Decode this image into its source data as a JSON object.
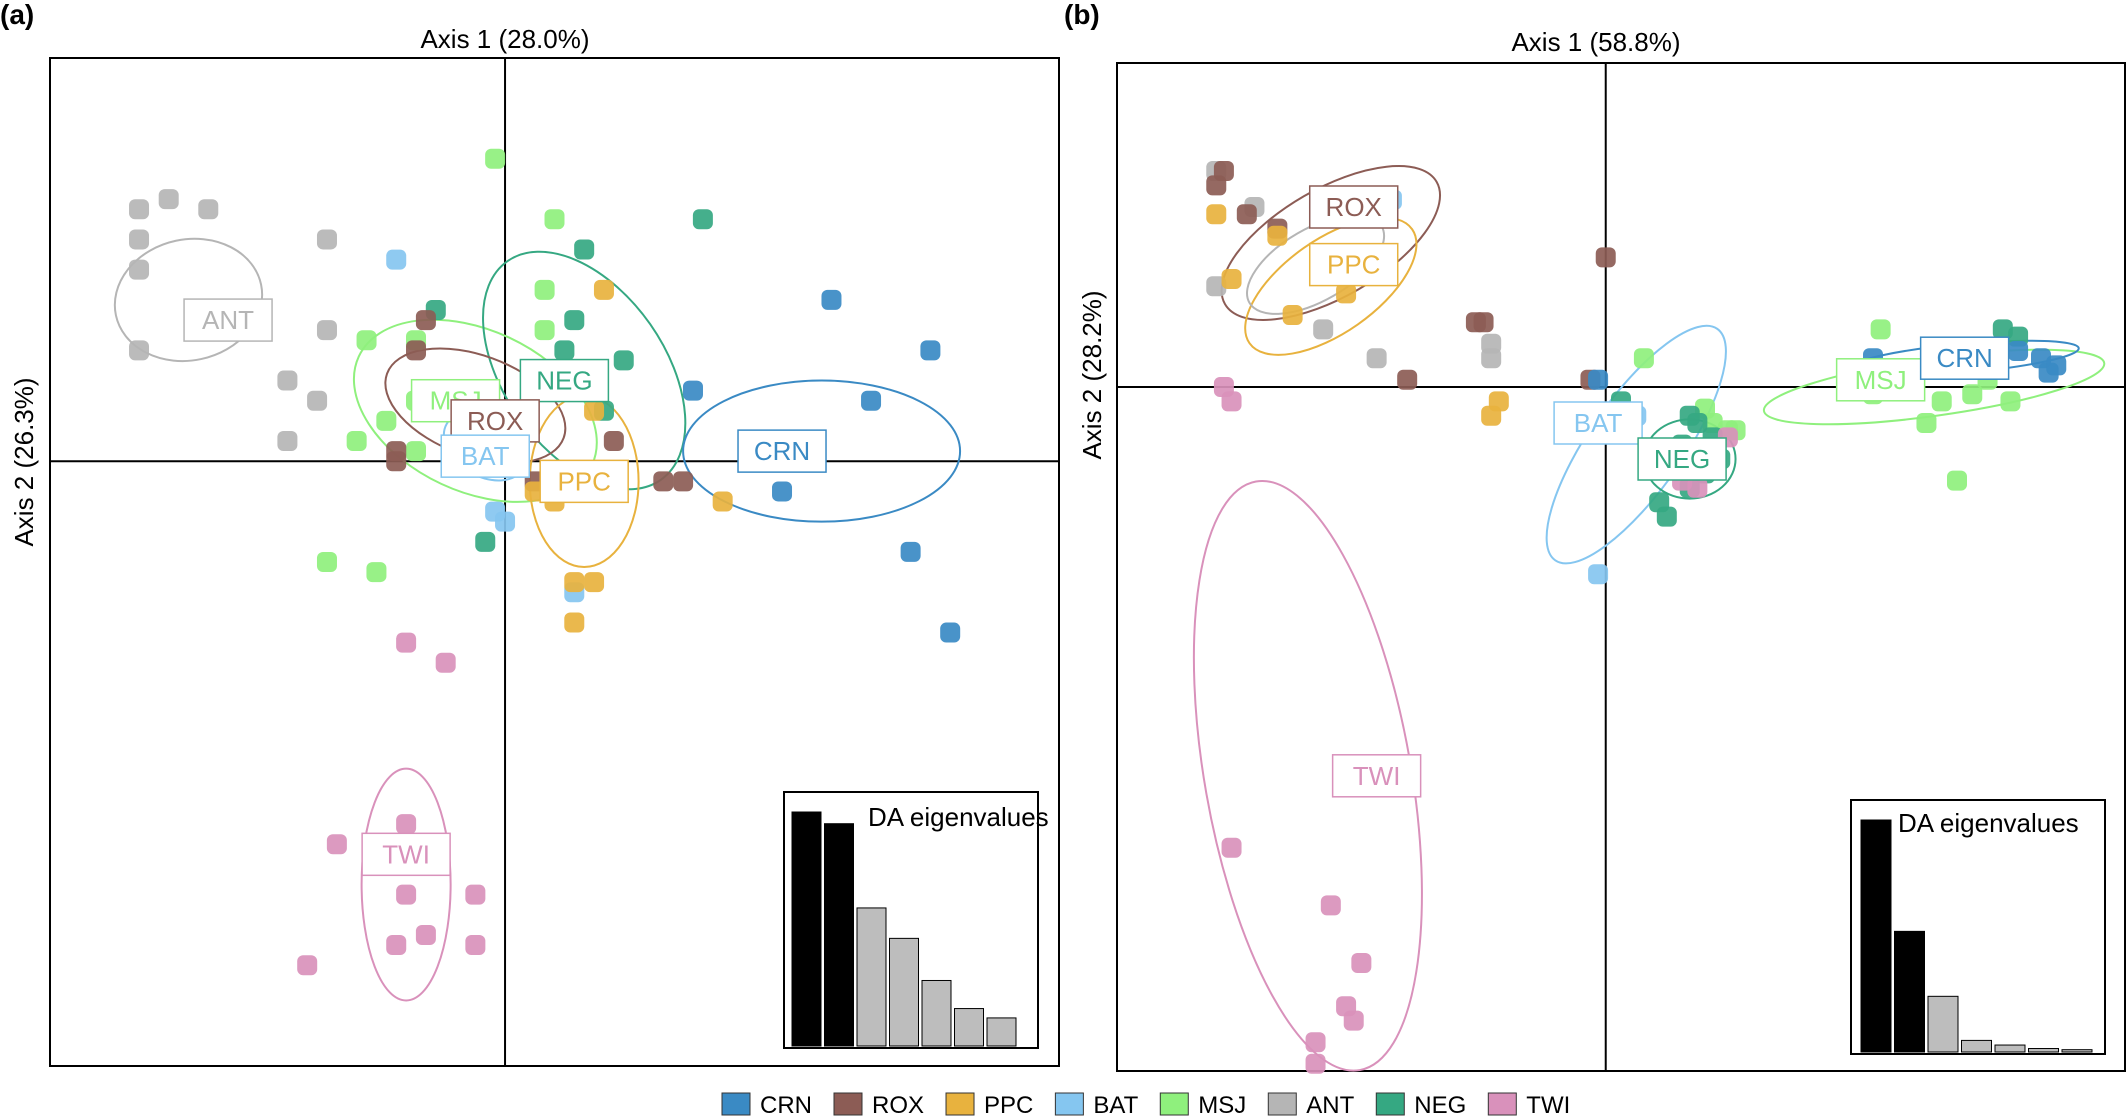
{
  "groups": [
    {
      "code": "CRN",
      "color": "#3a8ac4"
    },
    {
      "code": "ROX",
      "color": "#8c5c55"
    },
    {
      "code": "PPC",
      "color": "#e8b23e"
    },
    {
      "code": "BAT",
      "color": "#85c6f0"
    },
    {
      "code": "MSJ",
      "color": "#8ff07d"
    },
    {
      "code": "ANT",
      "color": "#b5b5b5"
    },
    {
      "code": "NEG",
      "color": "#35a882"
    },
    {
      "code": "TWI",
      "color": "#d991bb"
    }
  ],
  "chart_data": [
    {
      "type": "scatter",
      "panel_label": "(a)",
      "xlabel": "Axis 1 (28.0%)",
      "ylabel": "Axis 2 (26.3%)",
      "xlim": [
        -4.6,
        5.6
      ],
      "ylim": [
        -6.0,
        4.0
      ],
      "inset": {
        "title": "DA eigenvalues",
        "values": [
          1.0,
          0.95,
          0.59,
          0.46,
          0.28,
          0.16,
          0.12
        ],
        "retained": 2
      },
      "points": {
        "ANT": [
          [
            -3.7,
            2.5
          ],
          [
            -3.4,
            2.6
          ],
          [
            -3.0,
            2.5
          ],
          [
            -3.7,
            2.2
          ],
          [
            -1.8,
            2.2
          ],
          [
            -3.7,
            1.9
          ],
          [
            -1.8,
            1.3
          ],
          [
            -3.7,
            1.1
          ],
          [
            -2.2,
            0.8
          ],
          [
            -1.9,
            0.6
          ],
          [
            -2.2,
            0.2
          ]
        ],
        "MSJ": [
          [
            -0.1,
            3.0
          ],
          [
            0.5,
            2.4
          ],
          [
            -1.4,
            1.2
          ],
          [
            -0.9,
            1.2
          ],
          [
            0.4,
            1.3
          ],
          [
            -1.5,
            0.2
          ],
          [
            -1.2,
            0.4
          ],
          [
            -0.9,
            0.6
          ],
          [
            -0.9,
            0.1
          ],
          [
            -1.8,
            -1.0
          ],
          [
            -1.3,
            -1.1
          ],
          [
            0.4,
            1.7
          ]
        ],
        "NEG": [
          [
            2.0,
            2.4
          ],
          [
            0.8,
            2.1
          ],
          [
            -0.7,
            1.5
          ],
          [
            0.7,
            1.4
          ],
          [
            1.2,
            1.0
          ],
          [
            0.6,
            1.1
          ],
          [
            -0.2,
            -0.8
          ],
          [
            1.0,
            0.5
          ]
        ],
        "ROX": [
          [
            -0.8,
            1.4
          ],
          [
            -0.9,
            1.1
          ],
          [
            -1.1,
            0.1
          ],
          [
            -1.1,
            0.0
          ],
          [
            0.0,
            0.0
          ],
          [
            0.3,
            -0.2
          ],
          [
            1.1,
            0.2
          ],
          [
            1.6,
            -0.2
          ],
          [
            1.8,
            -0.2
          ]
        ],
        "BAT": [
          [
            -1.1,
            2.0
          ],
          [
            -0.1,
            -0.5
          ],
          [
            0.0,
            -0.6
          ],
          [
            0.7,
            -1.3
          ]
        ],
        "PPC": [
          [
            1.0,
            1.7
          ],
          [
            0.5,
            0.7
          ],
          [
            0.9,
            0.5
          ],
          [
            0.3,
            -0.3
          ],
          [
            0.5,
            -0.4
          ],
          [
            0.7,
            -1.2
          ],
          [
            0.9,
            -1.2
          ],
          [
            0.7,
            -1.6
          ],
          [
            2.2,
            -0.4
          ]
        ],
        "CRN": [
          [
            3.3,
            1.6
          ],
          [
            4.3,
            1.1
          ],
          [
            1.9,
            0.7
          ],
          [
            3.7,
            0.6
          ],
          [
            2.8,
            -0.3
          ],
          [
            4.1,
            -0.9
          ],
          [
            4.5,
            -1.7
          ]
        ],
        "TWI": [
          [
            -1.0,
            -1.8
          ],
          [
            -0.6,
            -2.0
          ],
          [
            -1.0,
            -3.6
          ],
          [
            -1.7,
            -3.8
          ],
          [
            -1.0,
            -4.3
          ],
          [
            -0.3,
            -4.3
          ],
          [
            -1.1,
            -4.8
          ],
          [
            -0.8,
            -4.7
          ],
          [
            -0.3,
            -4.8
          ],
          [
            -2.0,
            -5.0
          ]
        ]
      },
      "ellipses": {
        "ANT": {
          "center": [
            -3.2,
            1.6
          ],
          "radii": [
            0.75,
            0.6
          ],
          "angle": 12
        },
        "MSJ": {
          "center": [
            -0.3,
            0.5
          ],
          "radii": [
            1.3,
            0.8
          ],
          "angle": -25
        },
        "NEG": {
          "center": [
            0.8,
            0.9
          ],
          "radii": [
            1.35,
            0.8
          ],
          "angle": -55
        },
        "ROX": {
          "center": [
            -0.3,
            0.55
          ],
          "radii": [
            0.95,
            0.5
          ],
          "angle": -20
        },
        "BAT": {
          "center": [
            -0.2,
            0.15
          ],
          "radii": [
            0.45,
            0.3
          ],
          "angle": -30
        },
        "PPC": {
          "center": [
            0.8,
            -0.2
          ],
          "radii": [
            0.55,
            0.85
          ],
          "angle": 0
        },
        "CRN": {
          "center": [
            3.2,
            0.1
          ],
          "radii": [
            1.4,
            0.7
          ],
          "angle": 0
        },
        "TWI": {
          "center": [
            -1.0,
            -4.2
          ],
          "radii": [
            0.45,
            1.15
          ],
          "angle": 0
        }
      },
      "labels": {
        "ANT": [
          -2.8,
          1.4
        ],
        "MSJ": [
          -0.5,
          0.6
        ],
        "NEG": [
          0.6,
          0.8
        ],
        "ROX": [
          -0.1,
          0.4
        ],
        "BAT": [
          -0.2,
          0.05
        ],
        "PPC": [
          0.8,
          -0.2
        ],
        "CRN": [
          2.8,
          0.1
        ],
        "TWI": [
          -1.0,
          -3.9
        ]
      }
    },
    {
      "type": "scatter",
      "panel_label": "(b)",
      "xlabel": "Axis 1 (58.8%)",
      "ylabel": "Axis 2 (28.2%)",
      "xlim": [
        -6.4,
        6.8
      ],
      "ylim": [
        -9.5,
        4.5
      ],
      "inset": {
        "title": "DA eigenvalues",
        "values": [
          1.0,
          0.52,
          0.24,
          0.05,
          0.03,
          0.015,
          0.01
        ],
        "retained": 2
      },
      "points": {
        "ANT": [
          [
            -5.1,
            3.0
          ],
          [
            -4.6,
            2.5
          ],
          [
            -5.1,
            1.4
          ],
          [
            -3.7,
            0.8
          ],
          [
            -1.5,
            0.6
          ],
          [
            -1.5,
            0.4
          ],
          [
            -3.0,
            0.4
          ]
        ],
        "ROX": [
          [
            -5.1,
            2.8
          ],
          [
            -5.0,
            3.0
          ],
          [
            -4.7,
            2.4
          ],
          [
            -4.3,
            2.2
          ],
          [
            0.0,
            1.8
          ],
          [
            -1.7,
            0.9
          ],
          [
            -1.6,
            0.9
          ],
          [
            -2.6,
            0.1
          ],
          [
            -0.2,
            0.1
          ]
        ],
        "PPC": [
          [
            -5.1,
            2.4
          ],
          [
            -4.3,
            2.1
          ],
          [
            -3.6,
            1.8
          ],
          [
            -4.9,
            1.5
          ],
          [
            -3.4,
            1.3
          ],
          [
            -4.1,
            1.0
          ],
          [
            -1.4,
            -0.2
          ],
          [
            -1.5,
            -0.4
          ]
        ],
        "BAT": [
          [
            -2.8,
            2.6
          ],
          [
            -0.1,
            -2.6
          ],
          [
            0.4,
            -0.4
          ]
        ],
        "MSJ": [
          [
            0.5,
            0.4
          ],
          [
            1.3,
            -0.3
          ],
          [
            1.4,
            -0.5
          ],
          [
            1.6,
            -0.6
          ],
          [
            1.7,
            -0.6
          ],
          [
            3.6,
            0.8
          ],
          [
            3.5,
            -0.1
          ],
          [
            4.4,
            -0.2
          ],
          [
            5.0,
            0.1
          ],
          [
            5.3,
            -0.2
          ],
          [
            4.8,
            -0.1
          ],
          [
            4.2,
            -0.5
          ],
          [
            4.6,
            -1.3
          ]
        ],
        "NEG": [
          [
            5.2,
            0.8
          ],
          [
            5.4,
            0.7
          ],
          [
            0.2,
            -0.2
          ],
          [
            1.1,
            -0.4
          ],
          [
            1.0,
            -0.8
          ],
          [
            1.4,
            -0.7
          ],
          [
            1.2,
            -0.5
          ],
          [
            1.3,
            -1.2
          ],
          [
            1.1,
            -1.4
          ],
          [
            1.5,
            -1.0
          ],
          [
            0.7,
            -1.6
          ],
          [
            0.8,
            -1.8
          ]
        ],
        "CRN": [
          [
            -0.1,
            0.1
          ],
          [
            3.5,
            0.4
          ],
          [
            5.4,
            0.5
          ],
          [
            5.7,
            0.4
          ],
          [
            5.8,
            0.2
          ],
          [
            5.9,
            0.3
          ]
        ],
        "TWI": [
          [
            -5.0,
            0.0
          ],
          [
            -4.9,
            -0.2
          ],
          [
            -4.9,
            -6.4
          ],
          [
            -3.6,
            -7.2
          ],
          [
            -3.2,
            -8.0
          ],
          [
            -3.4,
            -8.6
          ],
          [
            -3.3,
            -8.8
          ],
          [
            -3.8,
            -9.1
          ],
          [
            -3.8,
            -9.4
          ],
          [
            1.6,
            -0.7
          ],
          [
            1.0,
            -1.3
          ],
          [
            1.2,
            -1.4
          ]
        ]
      },
      "ellipses": {
        "ROX": {
          "center": [
            -3.6,
            2.0
          ],
          "radii": [
            1.6,
            0.75
          ],
          "angle": 30
        },
        "PPC": {
          "center": [
            -3.6,
            1.4
          ],
          "radii": [
            1.3,
            0.65
          ],
          "angle": 35
        },
        "ANT": {
          "center": [
            -3.8,
            1.7
          ],
          "radii": [
            1.0,
            0.5
          ],
          "angle": 30
        },
        "BAT": {
          "center": [
            0.4,
            -0.8
          ],
          "radii": [
            1.85,
            0.65
          ],
          "angle": 55
        },
        "NEG": {
          "center": [
            1.1,
            -1.0
          ],
          "radii": [
            0.6,
            0.55
          ],
          "angle": 0
        },
        "MSJ": {
          "center": [
            4.3,
            0.0
          ],
          "radii": [
            2.25,
            0.4
          ],
          "angle": 8
        },
        "CRN": {
          "center": [
            4.7,
            0.4
          ],
          "radii": [
            1.5,
            0.2
          ],
          "angle": 5
        },
        "TWI": {
          "center": [
            -3.9,
            -5.4
          ],
          "radii": [
            1.35,
            4.15
          ],
          "angle": 10
        }
      },
      "labels": {
        "ROX": [
          -3.3,
          2.5
        ],
        "PPC": [
          -3.3,
          1.7
        ],
        "BAT": [
          -0.1,
          -0.5
        ],
        "NEG": [
          1.0,
          -1.0
        ],
        "MSJ": [
          3.6,
          0.1
        ],
        "CRN": [
          4.7,
          0.4
        ],
        "TWI": [
          -3.0,
          -5.4
        ]
      }
    }
  ]
}
